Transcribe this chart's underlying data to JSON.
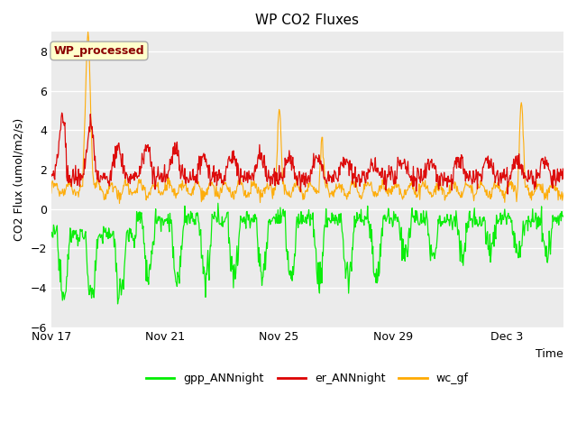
{
  "title": "WP CO2 Fluxes",
  "xlabel": "Time",
  "ylabel": "CO2 Flux (umol/m2/s)",
  "ylim": [
    -6,
    9
  ],
  "yticks": [
    -6,
    -4,
    -2,
    0,
    2,
    4,
    6,
    8
  ],
  "plot_bg_color": "#ebebeb",
  "fig_bg_color": "#ffffff",
  "annotation_text": "WP_processed",
  "annotation_color": "#8B0000",
  "annotation_bg": "#ffffcc",
  "line_colors": {
    "gpp": "#00ee00",
    "er": "#dd0000",
    "wc": "#ffaa00"
  },
  "legend_labels": [
    "gpp_ANNnight",
    "er_ANNnight",
    "wc_gf"
  ],
  "x_tick_labels": [
    "Nov 17",
    "Nov 21",
    "Nov 25",
    "Nov 29",
    "Dec 3"
  ],
  "tick_positions": [
    0,
    4,
    8,
    12,
    16
  ],
  "n_days": 18,
  "pts_per_day": 48,
  "seed": 12345
}
